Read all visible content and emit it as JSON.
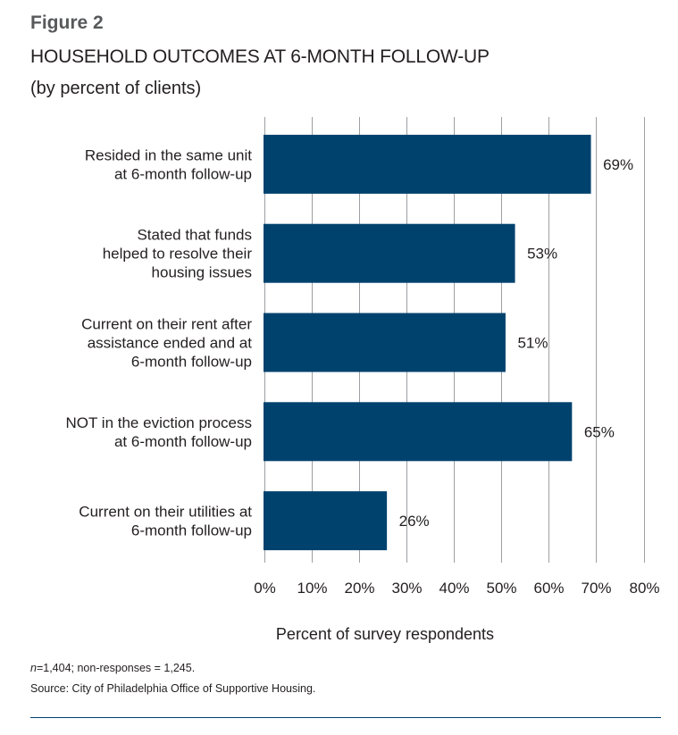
{
  "figure_label": "Figure 2",
  "notes": {
    "n_prefix": "n",
    "n_text": "=1,404; non-responses = 1,245.",
    "source": "Source: City of Philadelphia Office of Supportive Housing."
  },
  "colors": {
    "bar": "#00426e",
    "grid": "#9d9fa2",
    "text": "#231f20",
    "rule": "#00426e"
  },
  "chart_data": {
    "type": "bar",
    "orientation": "horizontal",
    "title": "HOUSEHOLD OUTCOMES AT 6-MONTH FOLLOW-UP",
    "subtitle": "(by percent of clients)",
    "xlabel": "Percent of survey respondents",
    "ylabel": "",
    "xlim": [
      0,
      80
    ],
    "grid": true,
    "legend": "none",
    "ticks": [
      "0%",
      "10%",
      "20%",
      "30%",
      "40%",
      "50%",
      "60%",
      "70%",
      "80%"
    ],
    "tick_values": [
      0,
      10,
      20,
      30,
      40,
      50,
      60,
      70,
      80
    ],
    "categories": [
      [
        "Resided in the same unit",
        "at 6-month follow-up"
      ],
      [
        "Stated that funds",
        "helped to resolve their",
        "housing issues"
      ],
      [
        "Current on their rent after",
        "assistance ended and at",
        "6-month follow-up"
      ],
      [
        "NOT in the eviction process",
        "at 6-month follow-up"
      ],
      [
        "Current on their utilities at",
        "6-month follow-up"
      ]
    ],
    "values": [
      69,
      53,
      51,
      65,
      26
    ],
    "data_labels": [
      "69%",
      "53%",
      "51%",
      "65%",
      "26%"
    ]
  }
}
